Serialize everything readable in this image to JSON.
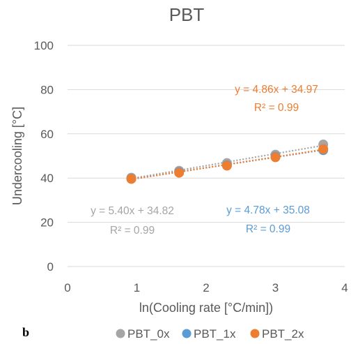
{
  "panel_label": "b",
  "chart_data": {
    "type": "scatter",
    "title": "PBT",
    "xlabel": "ln(Cooling rate [°C/min])",
    "ylabel": "Undercooling  [°C]",
    "xlim": [
      0,
      4
    ],
    "ylim": [
      0,
      100
    ],
    "x_ticks": [
      "0",
      "1",
      "2",
      "3",
      "4"
    ],
    "y_ticks": [
      "0",
      "20",
      "40",
      "60",
      "80",
      "100"
    ],
    "grid": "horizontal",
    "legend_position": "bottom",
    "series": [
      {
        "name": "PBT_0x",
        "color": "#a5a5a5",
        "x": [
          0.92,
          1.61,
          2.3,
          3.0,
          3.69
        ],
        "y": [
          40.2,
          43.3,
          46.8,
          50.6,
          55.2
        ],
        "trendline": {
          "slope": 5.4,
          "intercept": 34.82
        },
        "equation": "y = 5.40x + 34.82",
        "r2": "R² = 0.99"
      },
      {
        "name": "PBT_1x",
        "color": "#5b9bd5",
        "x": [
          0.92,
          1.61,
          2.3,
          3.0,
          3.69
        ],
        "y": [
          39.7,
          42.7,
          45.8,
          49.7,
          52.6
        ],
        "trendline": {
          "slope": 4.78,
          "intercept": 35.08
        },
        "equation": "y = 4.78x + 35.08",
        "r2": "R² = 0.99"
      },
      {
        "name": "PBT_2x",
        "color": "#ed7d31",
        "x": [
          0.92,
          1.61,
          2.3,
          3.0,
          3.69
        ],
        "y": [
          39.6,
          42.4,
          45.6,
          49.4,
          53.1
        ],
        "trendline": {
          "slope": 4.86,
          "intercept": 34.97
        },
        "equation": "y = 4.86x + 34.97",
        "r2": "R² = 0.99"
      }
    ]
  }
}
